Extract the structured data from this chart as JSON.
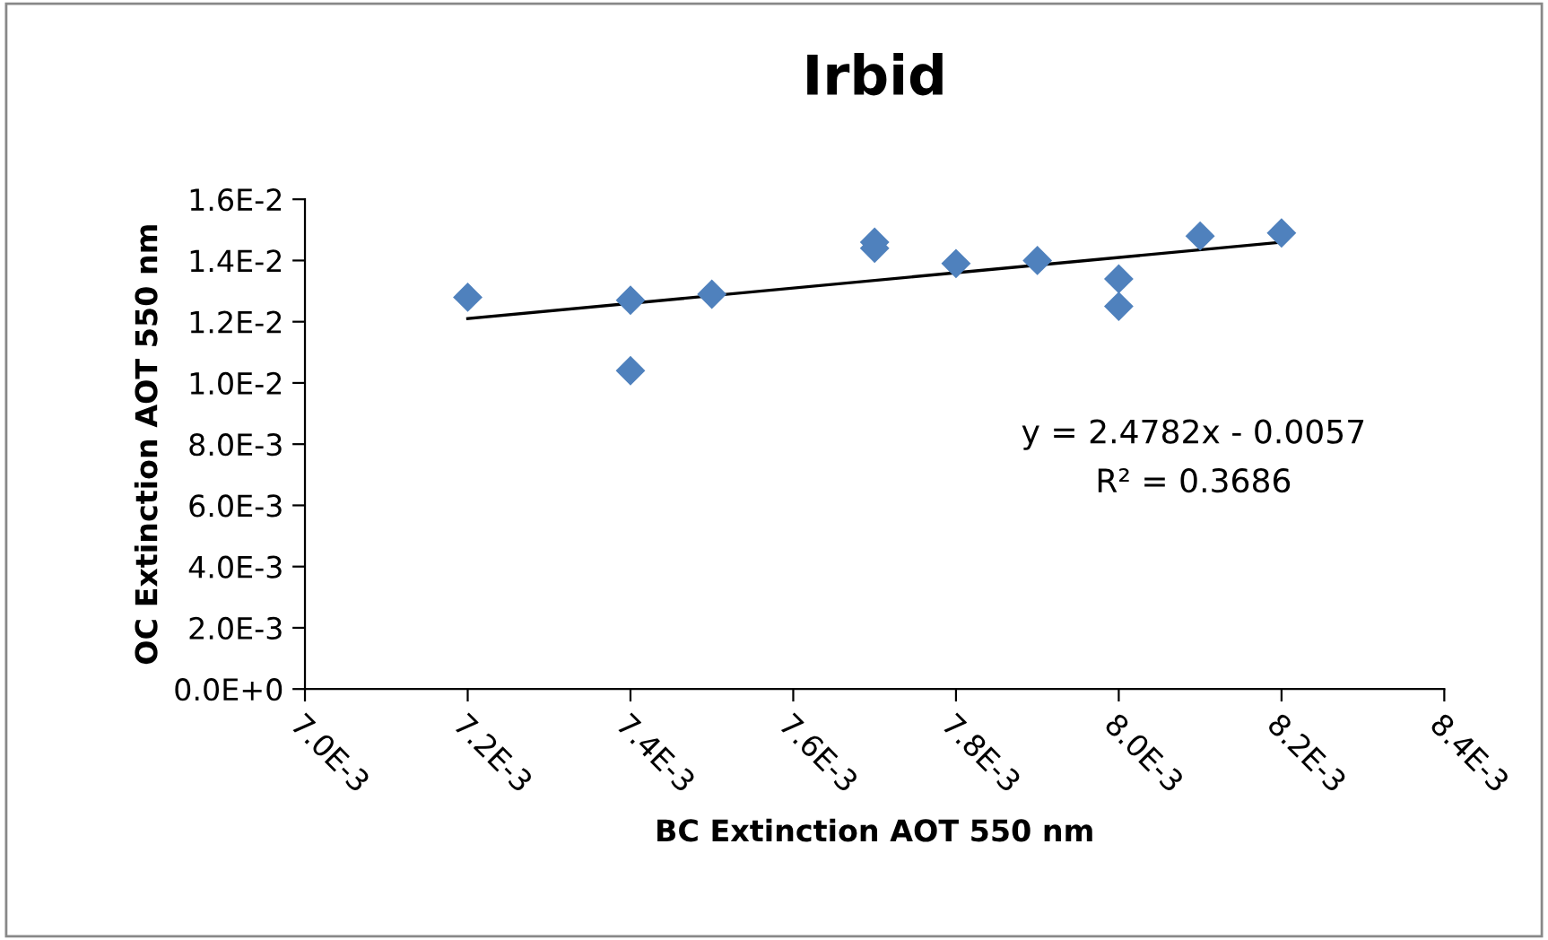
{
  "chart_data": {
    "type": "scatter",
    "title": "Irbid",
    "xlabel": "BC Extinction AOT 550 nm",
    "ylabel": "OC Extinction AOT 550 nm",
    "series": [
      {
        "color": "#4f81bd",
        "marker": "diamond",
        "x": [
          0.0072,
          0.0074,
          0.0074,
          0.0075,
          0.0077,
          0.0077,
          0.0078,
          0.0079,
          0.008,
          0.008,
          0.0081,
          0.0082
        ],
        "values": [
          0.0128,
          0.0127,
          0.0104,
          0.0129,
          0.0146,
          0.0144,
          0.0139,
          0.014,
          0.0134,
          0.0125,
          0.0148,
          0.0149
        ]
      },
      {
        "type": "line",
        "color": "#000000",
        "x": [
          0.0072,
          0.0082
        ],
        "values": [
          0.0121,
          0.0146
        ]
      }
    ],
    "xlim": [
      0.007,
      0.0084
    ],
    "xticks": [
      {
        "value": 0.007,
        "label": "7.0E-3"
      },
      {
        "value": 0.0072,
        "label": "7.2E-3"
      },
      {
        "value": 0.0074,
        "label": "7.4E-3"
      },
      {
        "value": 0.0076,
        "label": "7.6E-3"
      },
      {
        "value": 0.0078,
        "label": "7.8E-3"
      },
      {
        "value": 0.008,
        "label": "8.0E-3"
      },
      {
        "value": 0.0082,
        "label": "8.2E-3"
      },
      {
        "value": 0.0084,
        "label": "8.4E-3"
      }
    ],
    "ylim": [
      0,
      0.016
    ],
    "yticks": [
      {
        "value": 0,
        "label": "0.0E+0"
      },
      {
        "value": 0.002,
        "label": "2.0E-3"
      },
      {
        "value": 0.004,
        "label": "4.0E-3"
      },
      {
        "value": 0.006,
        "label": "6.0E-3"
      },
      {
        "value": 0.008,
        "label": "8.0E-3"
      },
      {
        "value": 0.01,
        "label": "1.0E-2"
      },
      {
        "value": 0.012,
        "label": "1.2E-2"
      },
      {
        "value": 0.014,
        "label": "1.4E-2"
      },
      {
        "value": 0.016,
        "label": "1.6E-2"
      }
    ],
    "annotations": [
      "y = 2.4782x - 0.0057",
      "R² = 0.3686"
    ],
    "grid": false,
    "legend": false
  }
}
